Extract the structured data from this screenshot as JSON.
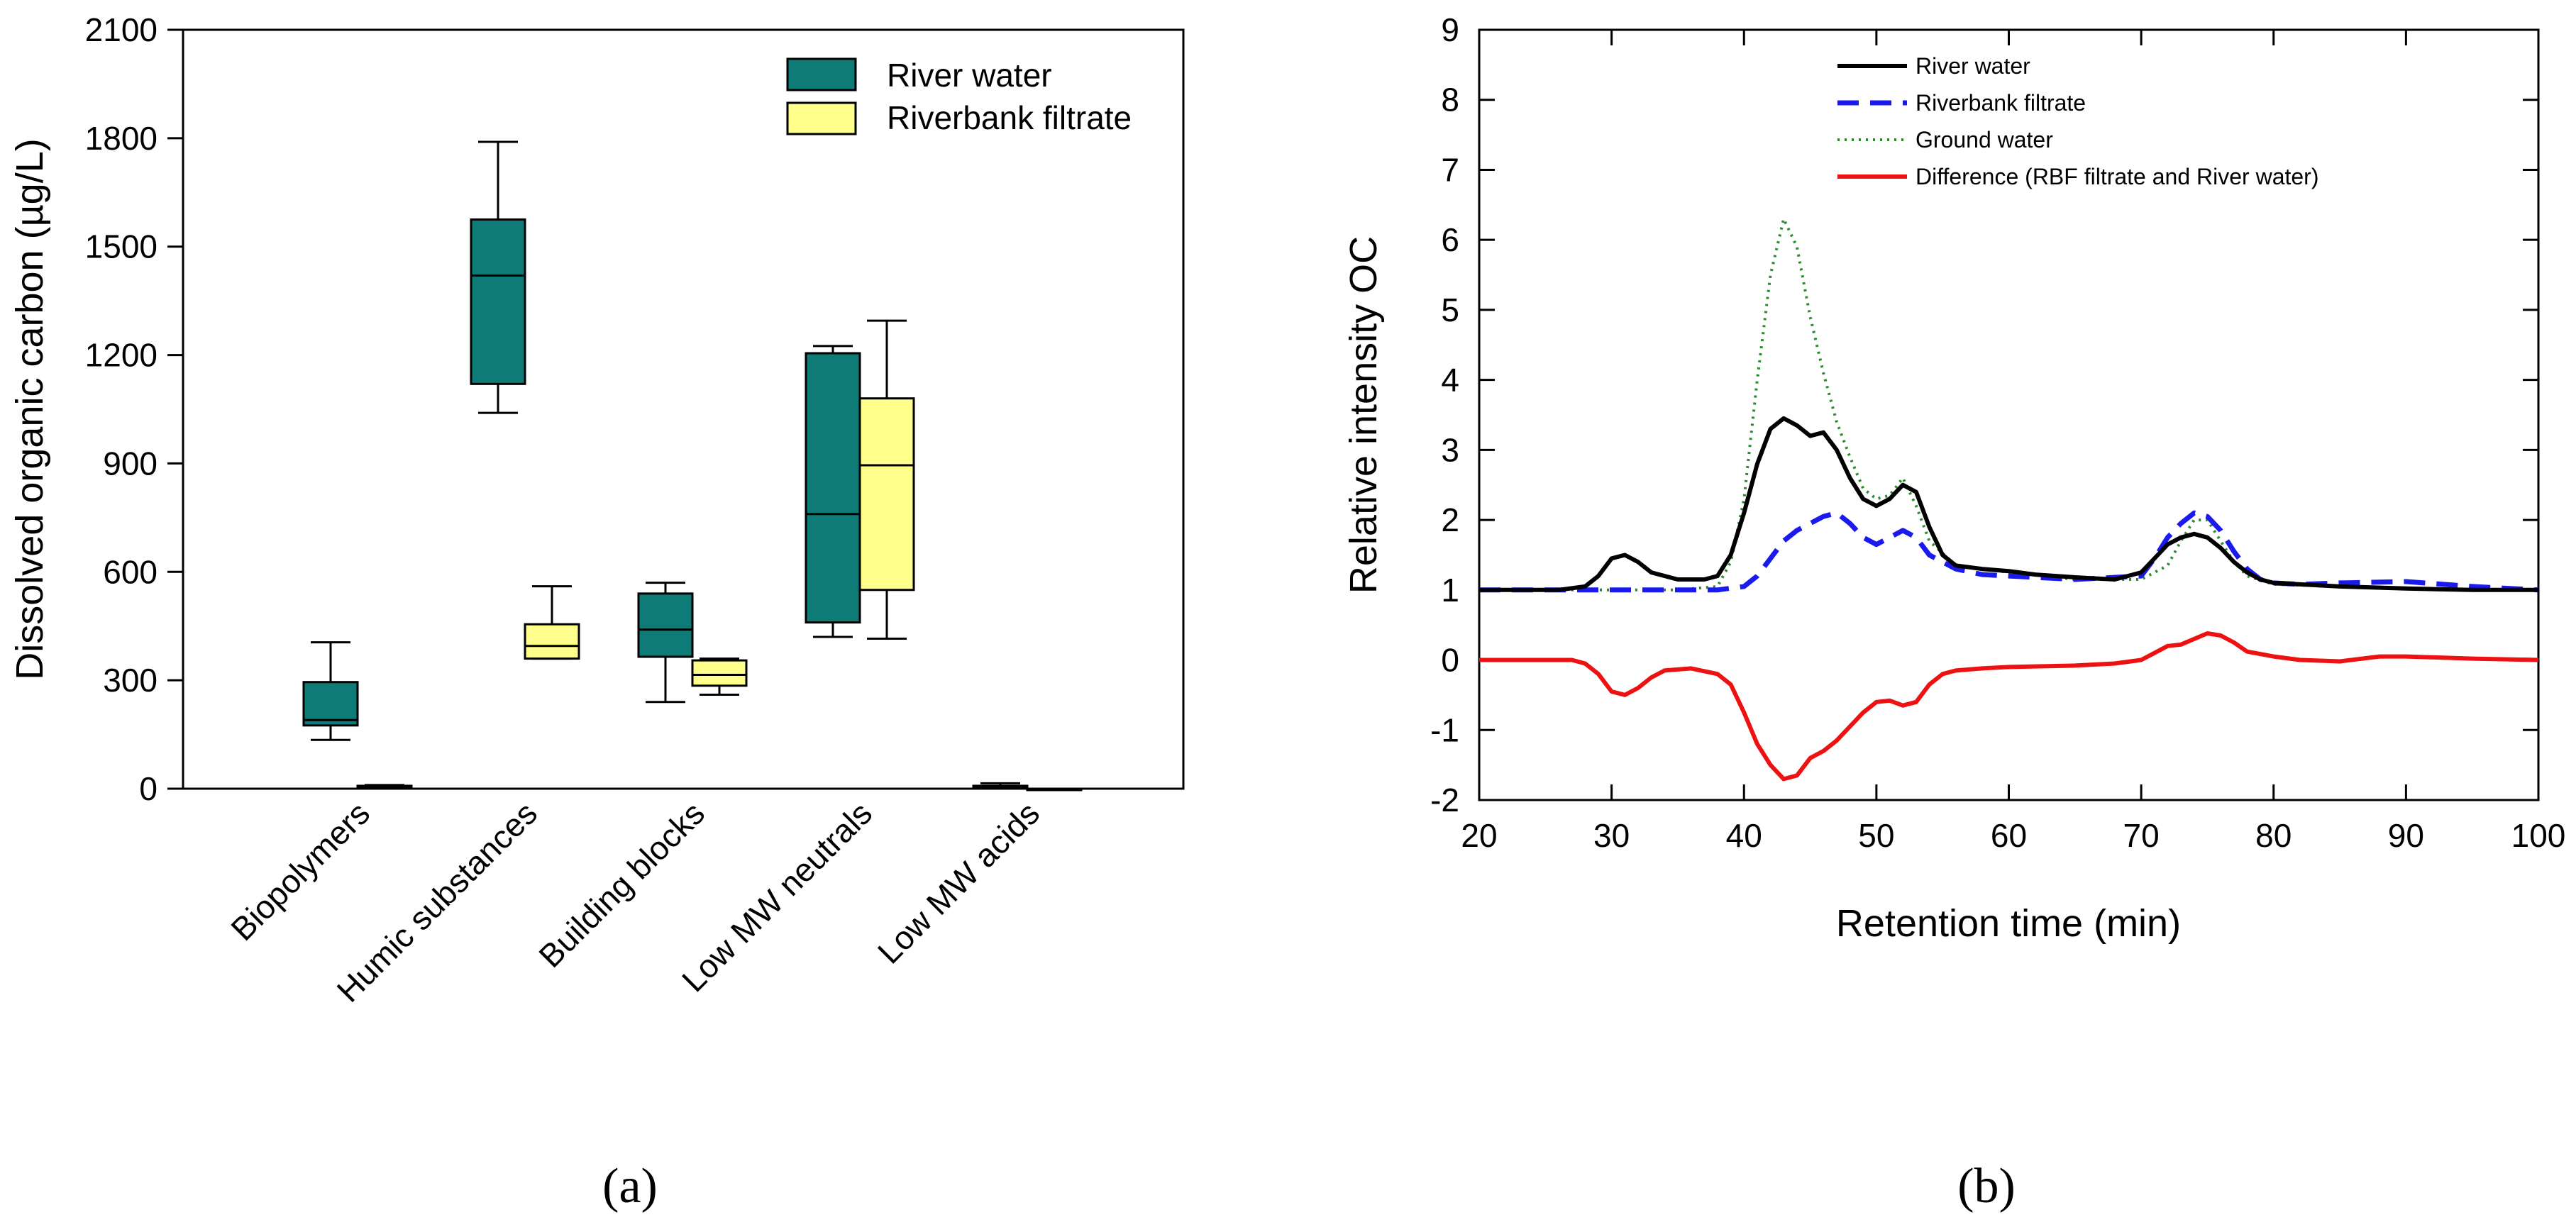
{
  "chart_data": [
    {
      "panel": "a",
      "type": "box",
      "panel_label": "(a)",
      "ylabel": "Dissolved organic carbon (µg/L)",
      "ylim": [
        0,
        2100
      ],
      "yticks": [
        0,
        300,
        600,
        900,
        1200,
        1500,
        1800,
        2100
      ],
      "categories": [
        "Biopolymers",
        "Humic substances",
        "Building blocks",
        "Low MW neutrals",
        "Low MW acids"
      ],
      "legend": [
        "River water",
        "Riverbank filtrate"
      ],
      "legend_position": "top-right",
      "colors": {
        "River water": "#0e7b77",
        "Riverbank filtrate": "#ffff8c"
      },
      "series": [
        {
          "name": "River water",
          "boxes": [
            {
              "min": 135,
              "q1": 175,
              "median": 190,
              "q3": 295,
              "max": 405
            },
            {
              "min": 1040,
              "q1": 1120,
              "median": 1420,
              "q3": 1575,
              "max": 1790
            },
            {
              "min": 240,
              "q1": 365,
              "median": 440,
              "q3": 540,
              "max": 570
            },
            {
              "min": 420,
              "q1": 460,
              "median": 760,
              "q3": 1205,
              "max": 1225
            },
            {
              "min": 0,
              "q1": 0,
              "median": 5,
              "q3": 8,
              "max": 15
            }
          ]
        },
        {
          "name": "Riverbank filtrate",
          "boxes": [
            {
              "min": 0,
              "q1": 2,
              "median": 4,
              "q3": 8,
              "max": 10
            },
            {
              "min": 360,
              "q1": 360,
              "median": 395,
              "q3": 455,
              "max": 560
            },
            {
              "min": 260,
              "q1": 285,
              "median": 315,
              "q3": 355,
              "max": 360
            },
            {
              "min": 415,
              "q1": 550,
              "median": 895,
              "q3": 1080,
              "max": 1295
            },
            {
              "min": 0,
              "q1": 0,
              "median": 0,
              "q3": 0,
              "max": 0
            }
          ]
        }
      ]
    },
    {
      "panel": "b",
      "type": "line",
      "panel_label": "(b)",
      "xlabel": "Retention time (min)",
      "ylabel": "Relative intensity OC",
      "xlim": [
        20,
        100
      ],
      "ylim": [
        -2,
        9
      ],
      "xticks": [
        20,
        30,
        40,
        50,
        60,
        70,
        80,
        90,
        100
      ],
      "yticks": [
        -2,
        -1,
        0,
        1,
        2,
        3,
        4,
        5,
        6,
        7,
        8,
        9
      ],
      "legend_position": "top-center",
      "series": [
        {
          "name": "River water",
          "color": "#000000",
          "style": "solid",
          "x": [
            20,
            26,
            28,
            29,
            30,
            31,
            32,
            33,
            35,
            37,
            38,
            39,
            40,
            41,
            42,
            43,
            44,
            45,
            46,
            47,
            48,
            49,
            50,
            51,
            52,
            53,
            54,
            55,
            56,
            58,
            60,
            62,
            65,
            68,
            70,
            71,
            72,
            73,
            74,
            75,
            76,
            77,
            78,
            79,
            80,
            82,
            85,
            90,
            95,
            100
          ],
          "y": [
            1.0,
            1.0,
            1.05,
            1.2,
            1.45,
            1.5,
            1.4,
            1.25,
            1.15,
            1.15,
            1.2,
            1.5,
            2.1,
            2.8,
            3.3,
            3.45,
            3.35,
            3.2,
            3.25,
            3.0,
            2.6,
            2.3,
            2.2,
            2.3,
            2.5,
            2.4,
            1.9,
            1.5,
            1.35,
            1.3,
            1.27,
            1.22,
            1.18,
            1.15,
            1.25,
            1.45,
            1.65,
            1.75,
            1.8,
            1.75,
            1.6,
            1.4,
            1.25,
            1.15,
            1.1,
            1.08,
            1.05,
            1.02,
            1.0,
            1.0
          ]
        },
        {
          "name": "Riverbank filtrate",
          "color": "#1a1aee",
          "style": "dashed",
          "x": [
            20,
            30,
            35,
            38,
            40,
            41,
            42,
            43,
            44,
            45,
            46,
            47,
            48,
            49,
            50,
            51,
            52,
            53,
            54,
            56,
            58,
            60,
            65,
            70,
            71,
            72,
            73,
            74,
            75,
            76,
            77,
            78,
            79,
            80,
            82,
            85,
            90,
            95,
            100
          ],
          "y": [
            1.0,
            1.0,
            1.0,
            1.0,
            1.05,
            1.2,
            1.45,
            1.7,
            1.85,
            1.95,
            2.05,
            2.1,
            1.95,
            1.75,
            1.65,
            1.75,
            1.85,
            1.75,
            1.5,
            1.3,
            1.22,
            1.2,
            1.15,
            1.2,
            1.45,
            1.75,
            1.95,
            2.1,
            2.05,
            1.85,
            1.55,
            1.3,
            1.15,
            1.1,
            1.08,
            1.1,
            1.12,
            1.05,
            1.0
          ]
        },
        {
          "name": "Ground water",
          "color": "#2e8b2e",
          "style": "dotted",
          "x": [
            20,
            30,
            35,
            38,
            39,
            40,
            41,
            42,
            43,
            44,
            45,
            46,
            47,
            48,
            49,
            50,
            51,
            52,
            53,
            54,
            56,
            60,
            65,
            70,
            72,
            73,
            74,
            75,
            76,
            77,
            78,
            80,
            85,
            90,
            95,
            100
          ],
          "y": [
            1.0,
            1.0,
            1.0,
            1.05,
            1.4,
            2.3,
            4.0,
            5.5,
            6.3,
            5.9,
            4.9,
            4.1,
            3.4,
            2.9,
            2.45,
            2.3,
            2.35,
            2.6,
            2.2,
            1.7,
            1.35,
            1.25,
            1.15,
            1.15,
            1.35,
            1.7,
            2.0,
            2.0,
            1.7,
            1.4,
            1.2,
            1.08,
            1.05,
            1.03,
            1.0,
            1.0
          ]
        },
        {
          "name": "Difference (RBF filtrate and River water)",
          "color": "#ee1111",
          "style": "solid",
          "x": [
            20,
            25,
            27,
            28,
            29,
            30,
            31,
            32,
            33,
            34,
            36,
            38,
            39,
            40,
            41,
            42,
            43,
            44,
            45,
            46,
            47,
            48,
            49,
            50,
            51,
            52,
            53,
            54,
            55,
            56,
            58,
            60,
            65,
            68,
            70,
            71,
            72,
            73,
            74,
            75,
            76,
            77,
            78,
            80,
            82,
            85,
            88,
            90,
            95,
            100
          ],
          "y": [
            0.0,
            0.0,
            0.0,
            -0.05,
            -0.2,
            -0.45,
            -0.5,
            -0.4,
            -0.25,
            -0.15,
            -0.12,
            -0.2,
            -0.35,
            -0.75,
            -1.2,
            -1.5,
            -1.7,
            -1.65,
            -1.4,
            -1.3,
            -1.15,
            -0.95,
            -0.75,
            -0.6,
            -0.58,
            -0.65,
            -0.6,
            -0.35,
            -0.2,
            -0.15,
            -0.12,
            -0.1,
            -0.08,
            -0.05,
            0.0,
            0.1,
            0.2,
            0.22,
            0.3,
            0.38,
            0.35,
            0.25,
            0.12,
            0.05,
            0.0,
            -0.02,
            0.05,
            0.05,
            0.02,
            0.0
          ]
        }
      ]
    }
  ]
}
